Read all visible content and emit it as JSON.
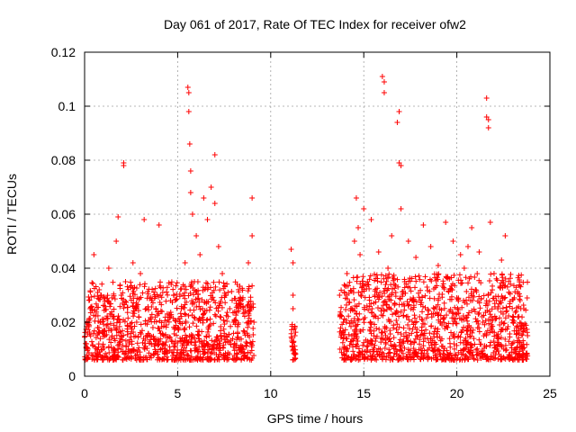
{
  "chart_data": {
    "type": "scatter",
    "title": "Day 061 of 2017, Rate Of TEC Index for receiver ofw2",
    "xlabel": "GPS time / hours",
    "ylabel": "ROTI / TECUs",
    "xlim": [
      0,
      25
    ],
    "ylim": [
      0,
      0.12
    ],
    "x_ticks": [
      "0",
      "5",
      "10",
      "15",
      "20",
      "25"
    ],
    "y_ticks": [
      "0",
      "0.02",
      "0.04",
      "0.06",
      "0.08",
      "0.1",
      "0.12"
    ],
    "x_tick_values": [
      0,
      5,
      10,
      15,
      20,
      25
    ],
    "y_tick_values": [
      0,
      0.02,
      0.04,
      0.06,
      0.08,
      0.1,
      0.12
    ],
    "grid": true,
    "marker": "+",
    "series": [
      {
        "color": "#ff0000",
        "points": [
          [
            0.1,
            0.012
          ],
          [
            0.3,
            0.025
          ],
          [
            0.5,
            0.045
          ],
          [
            0.7,
            0.018
          ],
          [
            0.9,
            0.03
          ],
          [
            1.1,
            0.015
          ],
          [
            1.3,
            0.04
          ],
          [
            1.5,
            0.022
          ],
          [
            1.7,
            0.05
          ],
          [
            1.8,
            0.059
          ],
          [
            1.9,
            0.02
          ],
          [
            2.1,
            0.079
          ],
          [
            2.1,
            0.078
          ],
          [
            2.2,
            0.035
          ],
          [
            2.4,
            0.012
          ],
          [
            2.6,
            0.042
          ],
          [
            2.8,
            0.02
          ],
          [
            3.0,
            0.038
          ],
          [
            3.2,
            0.058
          ],
          [
            3.4,
            0.015
          ],
          [
            3.6,
            0.028
          ],
          [
            3.8,
            0.012
          ],
          [
            4.0,
            0.056
          ],
          [
            4.2,
            0.031
          ],
          [
            4.4,
            0.019
          ],
          [
            4.6,
            0.022
          ],
          [
            4.8,
            0.012
          ],
          [
            5.0,
            0.018
          ],
          [
            5.2,
            0.025
          ],
          [
            5.4,
            0.042
          ],
          [
            5.55,
            0.107
          ],
          [
            5.6,
            0.105
          ],
          [
            5.6,
            0.098
          ],
          [
            5.65,
            0.086
          ],
          [
            5.7,
            0.076
          ],
          [
            5.7,
            0.068
          ],
          [
            5.8,
            0.06
          ],
          [
            5.9,
            0.035
          ],
          [
            6.0,
            0.052
          ],
          [
            6.2,
            0.045
          ],
          [
            6.4,
            0.066
          ],
          [
            6.6,
            0.058
          ],
          [
            6.8,
            0.07
          ],
          [
            7.0,
            0.082
          ],
          [
            7.0,
            0.064
          ],
          [
            7.2,
            0.048
          ],
          [
            7.4,
            0.038
          ],
          [
            7.6,
            0.03
          ],
          [
            7.8,
            0.025
          ],
          [
            8.0,
            0.02
          ],
          [
            8.2,
            0.034
          ],
          [
            8.4,
            0.028
          ],
          [
            8.6,
            0.016
          ],
          [
            8.8,
            0.042
          ],
          [
            9.0,
            0.066
          ],
          [
            9.0,
            0.052
          ],
          [
            9.1,
            0.02
          ],
          [
            11.1,
            0.047
          ],
          [
            11.2,
            0.042
          ],
          [
            11.2,
            0.03
          ],
          [
            11.2,
            0.025
          ],
          [
            11.3,
            0.018
          ],
          [
            11.3,
            0.015
          ],
          [
            11.2,
            0.01
          ],
          [
            13.7,
            0.03
          ],
          [
            13.9,
            0.02
          ],
          [
            14.1,
            0.038
          ],
          [
            14.3,
            0.025
          ],
          [
            14.5,
            0.05
          ],
          [
            14.6,
            0.066
          ],
          [
            14.7,
            0.055
          ],
          [
            14.8,
            0.045
          ],
          [
            15.0,
            0.062
          ],
          [
            15.2,
            0.035
          ],
          [
            15.4,
            0.058
          ],
          [
            15.6,
            0.03
          ],
          [
            15.8,
            0.046
          ],
          [
            16.0,
            0.111
          ],
          [
            16.1,
            0.109
          ],
          [
            16.1,
            0.105
          ],
          [
            16.3,
            0.04
          ],
          [
            16.5,
            0.052
          ],
          [
            16.8,
            0.094
          ],
          [
            16.9,
            0.098
          ],
          [
            16.9,
            0.079
          ],
          [
            17.0,
            0.078
          ],
          [
            17.0,
            0.062
          ],
          [
            17.2,
            0.035
          ],
          [
            17.4,
            0.05
          ],
          [
            17.6,
            0.028
          ],
          [
            17.8,
            0.044
          ],
          [
            18.0,
            0.022
          ],
          [
            18.2,
            0.056
          ],
          [
            18.4,
            0.033
          ],
          [
            18.6,
            0.048
          ],
          [
            18.8,
            0.025
          ],
          [
            19.0,
            0.041
          ],
          [
            19.2,
            0.019
          ],
          [
            19.4,
            0.057
          ],
          [
            19.6,
            0.036
          ],
          [
            19.8,
            0.05
          ],
          [
            20.0,
            0.029
          ],
          [
            20.2,
            0.045
          ],
          [
            20.4,
            0.04
          ],
          [
            20.6,
            0.048
          ],
          [
            20.8,
            0.055
          ],
          [
            21.0,
            0.032
          ],
          [
            21.2,
            0.046
          ],
          [
            21.4,
            0.02
          ],
          [
            21.6,
            0.103
          ],
          [
            21.6,
            0.096
          ],
          [
            21.7,
            0.095
          ],
          [
            21.7,
            0.092
          ],
          [
            21.8,
            0.057
          ],
          [
            22.0,
            0.038
          ],
          [
            22.2,
            0.025
          ],
          [
            22.4,
            0.043
          ],
          [
            22.6,
            0.052
          ],
          [
            22.8,
            0.031
          ],
          [
            23.0,
            0.022
          ],
          [
            23.2,
            0.018
          ],
          [
            23.4,
            0.028
          ],
          [
            23.6,
            0.025
          ],
          [
            23.8,
            0.015
          ]
        ]
      }
    ]
  }
}
